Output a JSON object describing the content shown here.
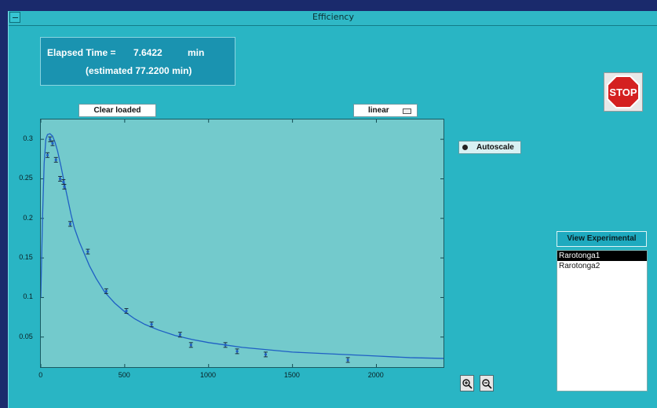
{
  "window": {
    "title": "Efficiency"
  },
  "status": {
    "elapsed_label": "Elapsed Time =",
    "elapsed_value": "7.6422",
    "elapsed_unit": "min",
    "estimated_text": "(estimated 77.2200 min)"
  },
  "controls": {
    "clear_loaded_label": "Clear loaded",
    "scale_select_value": "linear",
    "autoscale_label": "Autoscale",
    "stop_label": "STOP",
    "view_experimental_label": "View Experimental",
    "zoom_in_icon": "zoom-in-icon",
    "zoom_out_icon": "zoom-out-icon"
  },
  "experiments": {
    "items": [
      "Rarotonga1",
      "Rarotonga2"
    ],
    "selected": "Rarotonga1"
  },
  "chart_data": {
    "type": "line",
    "title": "",
    "xlabel": "",
    "ylabel": "",
    "xlim": [
      0,
      2400
    ],
    "ylim": [
      0.012,
      0.325
    ],
    "x_ticks": [
      0,
      500,
      1000,
      1500,
      2000
    ],
    "y_ticks": [
      0.05,
      0.1,
      0.15,
      0.2,
      0.25,
      0.3
    ],
    "x_tick_labels": [
      "0",
      "500",
      "1000",
      "1500",
      "2000"
    ],
    "y_tick_labels": [
      "0.05",
      "0.1",
      "0.15",
      "0.2",
      "0.25",
      "0.3"
    ],
    "grid": false,
    "series": [
      {
        "kind": "line",
        "color": "#1f5fc4",
        "x": [
          0,
          10,
          20,
          30,
          40,
          55,
          70,
          85,
          100,
          120,
          140,
          160,
          180,
          200,
          230,
          260,
          290,
          330,
          380,
          440,
          500,
          560,
          620,
          700,
          800,
          900,
          1000,
          1100,
          1200,
          1300,
          1400,
          1500,
          1600,
          1700,
          1800,
          1900,
          2000,
          2100,
          2200,
          2300,
          2400
        ],
        "y": [
          0.1,
          0.2,
          0.27,
          0.3,
          0.306,
          0.307,
          0.304,
          0.296,
          0.285,
          0.266,
          0.245,
          0.225,
          0.205,
          0.188,
          0.17,
          0.155,
          0.14,
          0.124,
          0.107,
          0.093,
          0.082,
          0.073,
          0.066,
          0.059,
          0.052,
          0.047,
          0.043,
          0.04,
          0.037,
          0.035,
          0.033,
          0.031,
          0.03,
          0.029,
          0.028,
          0.027,
          0.026,
          0.025,
          0.024,
          0.0235,
          0.023
        ]
      },
      {
        "kind": "points",
        "color": "#1f5fc4",
        "x": [
          40,
          55,
          70,
          90,
          115,
          135,
          140,
          175,
          280,
          390,
          510,
          660,
          830,
          895,
          1100,
          1170,
          1340,
          1830
        ],
        "y": [
          0.28,
          0.3,
          0.295,
          0.274,
          0.25,
          0.246,
          0.24,
          0.193,
          0.158,
          0.108,
          0.083,
          0.066,
          0.053,
          0.04,
          0.04,
          0.032,
          0.028,
          0.021
        ]
      }
    ]
  }
}
